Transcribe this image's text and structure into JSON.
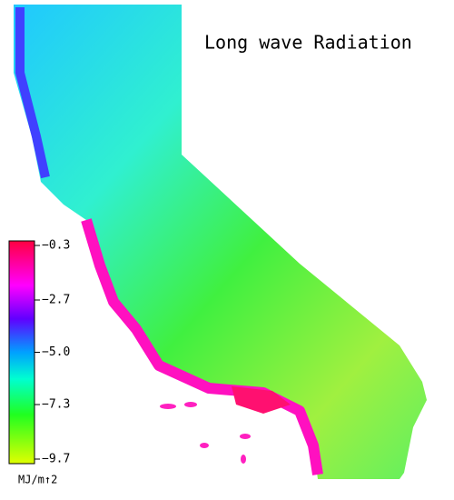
{
  "title": "Long wave Radiation",
  "colorbar": {
    "lim": [
      -9.7,
      -0.3
    ],
    "ticks": [
      {
        "value": -0.3,
        "label": "−0.3"
      },
      {
        "value": -2.7,
        "label": "−2.7"
      },
      {
        "value": -5.0,
        "label": "−5.0"
      },
      {
        "value": -7.3,
        "label": "−7.3"
      },
      {
        "value": -9.7,
        "label": "−9.7"
      }
    ],
    "unit": "MJ/m↑2"
  }
}
